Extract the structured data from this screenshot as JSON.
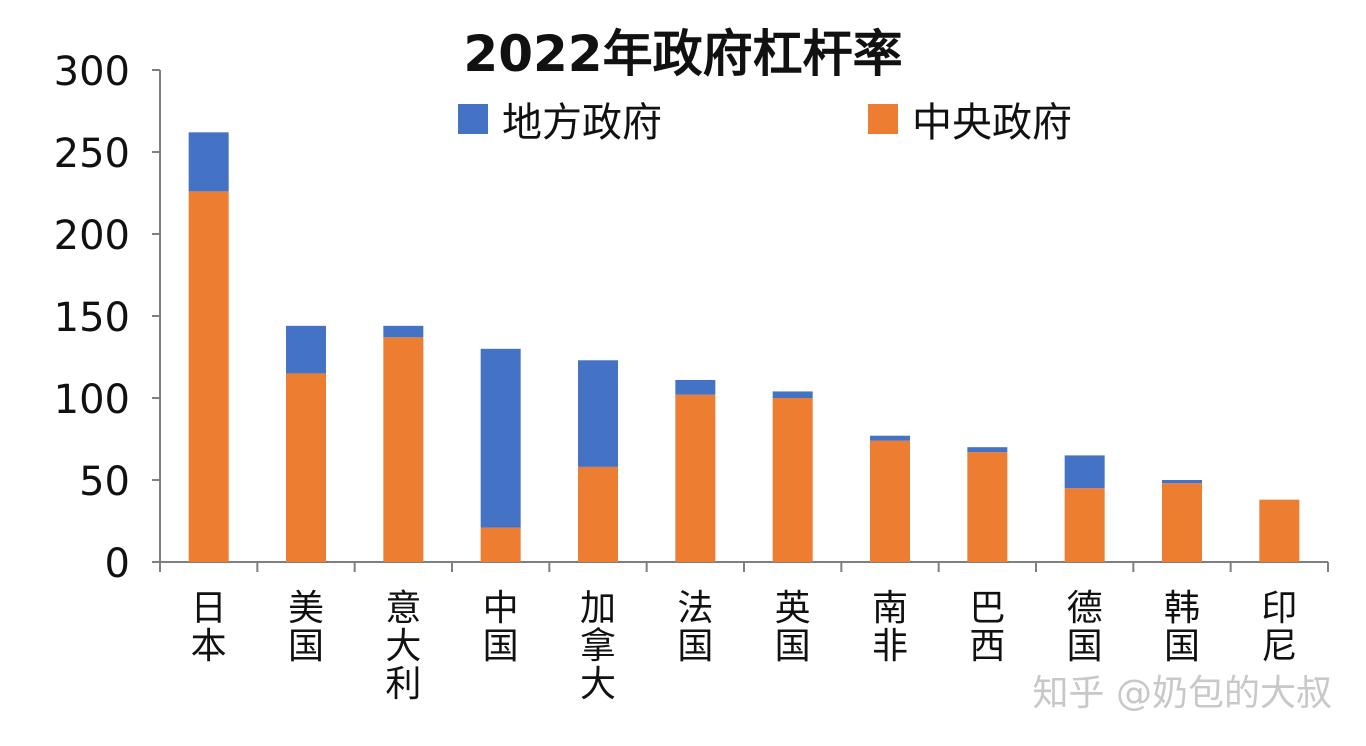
{
  "chart_data": {
    "type": "bar",
    "stacked": true,
    "title": "2022年政府杠杆率",
    "categories": [
      "日本",
      "美国",
      "意大利",
      "中国",
      "加拿大",
      "法国",
      "英国",
      "南非",
      "巴西",
      "德国",
      "韩国",
      "印尼"
    ],
    "series": [
      {
        "name": "中央政府",
        "color": "#ED7D31",
        "values": [
          226,
          115,
          137,
          21,
          58,
          102,
          100,
          74,
          67,
          45,
          48,
          38
        ]
      },
      {
        "name": "地方政府",
        "color": "#4472C4",
        "values": [
          36,
          29,
          7,
          109,
          65,
          9,
          4,
          3,
          3,
          20,
          2,
          0
        ]
      }
    ],
    "legend_order": [
      "地方政府",
      "中央政府"
    ],
    "ylim": [
      0,
      300
    ],
    "yticks": [
      0,
      50,
      100,
      150,
      200,
      250,
      300
    ],
    "xlabel": "",
    "ylabel": "",
    "grid": false,
    "legend_position": "top"
  },
  "watermark": "知乎 @奶包的大叔"
}
